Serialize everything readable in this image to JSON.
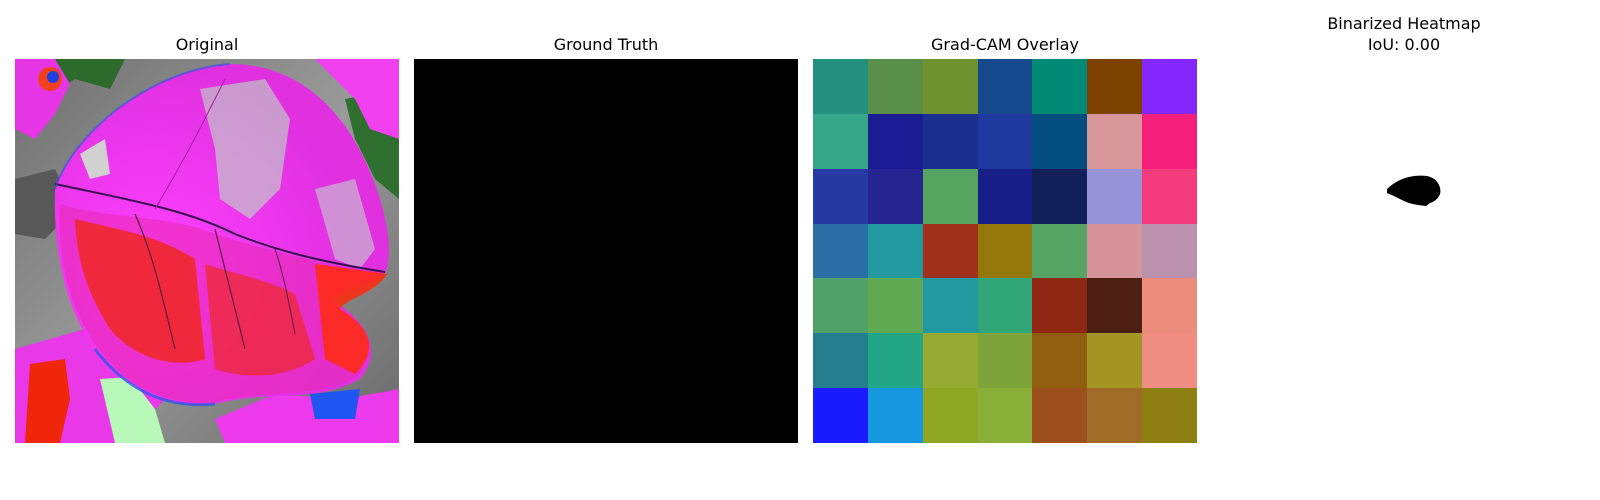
{
  "panels": {
    "original": {
      "title": "Original"
    },
    "ground_truth": {
      "title": "Ground Truth"
    },
    "gradcam": {
      "title": "Grad-CAM Overlay",
      "cells": [
        [
          "#258f7e",
          "#5a8f4a",
          "#6f9330",
          "#174a8c",
          "#028a77",
          "#7d4202",
          "#8327fe"
        ],
        [
          "#37a78a",
          "#1b1b93",
          "#1a2f8e",
          "#1f389e",
          "#024d7e",
          "#d8979a",
          "#f31f7b"
        ],
        [
          "#2639a4",
          "#262591",
          "#56a362",
          "#181e88",
          "#112058",
          "#9793da",
          "#f43b7b"
        ],
        [
          "#296ea4",
          "#239a9f",
          "#a1311c",
          "#93770a",
          "#56a363",
          "#d6939c",
          "#bc91ad"
        ],
        [
          "#50a06a",
          "#61a853",
          "#2299a0",
          "#31a679",
          "#8f2813",
          "#4d1f13",
          "#ec8c7c"
        ],
        [
          "#237d8d",
          "#23a685",
          "#97ab32",
          "#7da43a",
          "#905e0f",
          "#a39624",
          "#f08d82"
        ],
        [
          "#1a1bfe",
          "#1696df",
          "#8ea621",
          "#8aaf38",
          "#9b4f1b",
          "#a06b28",
          "#8e7f13"
        ]
      ]
    },
    "binarized": {
      "title_line1": "Binarized Heatmap",
      "title_line2": "IoU: 0.00"
    }
  },
  "colors": {
    "background": "#ffffff",
    "ground_truth_fill": "#000000",
    "leaf_magenta": "#e020e8",
    "leaf_red": "#f0260a",
    "bg_gray": "#8a8a8a"
  }
}
